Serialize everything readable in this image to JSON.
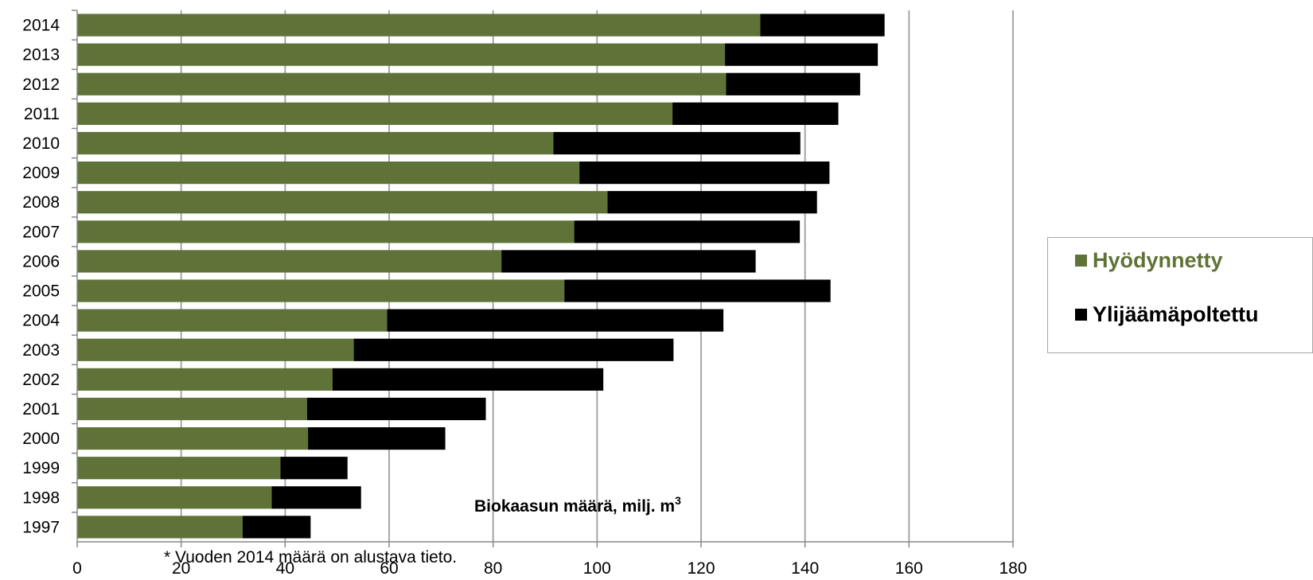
{
  "chart_data": {
    "type": "bar",
    "orientation": "horizontal",
    "stacked": true,
    "categories": [
      "1997",
      "1998",
      "1999",
      "2000",
      "2001",
      "2002",
      "2003",
      "2004",
      "2005",
      "2006",
      "2007",
      "2008",
      "2009",
      "2010",
      "2011",
      "2012",
      "2013",
      "2014"
    ],
    "series": [
      {
        "name": "Hyödynnetty",
        "color": "#5f7338",
        "values": [
          31.8,
          37.4,
          39.1,
          44.4,
          44.2,
          49.1,
          53.2,
          59.6,
          93.7,
          81.6,
          95.6,
          102.0,
          96.6,
          91.6,
          114.5,
          124.8,
          124.6,
          131.4
        ]
      },
      {
        "name": "Ylijäämäpoltettu",
        "color": "#000000",
        "values": [
          13.1,
          17.2,
          12.9,
          26.4,
          34.4,
          52.1,
          61.5,
          64.7,
          51.2,
          48.9,
          43.4,
          40.3,
          48.1,
          47.5,
          31.9,
          25.8,
          29.4,
          23.9
        ]
      }
    ],
    "xlim": [
      0,
      180
    ],
    "xticks": [
      "0",
      "20",
      "40",
      "60",
      "80",
      "100",
      "120",
      "140",
      "160",
      "180"
    ],
    "xlabel": "Biokaasun määrä, milj. m",
    "xlabel_superscript": "3",
    "annotation": "* Vuoden 2014 määrä on alustava tieto.",
    "grid": "vertical",
    "legend_position": "right"
  }
}
